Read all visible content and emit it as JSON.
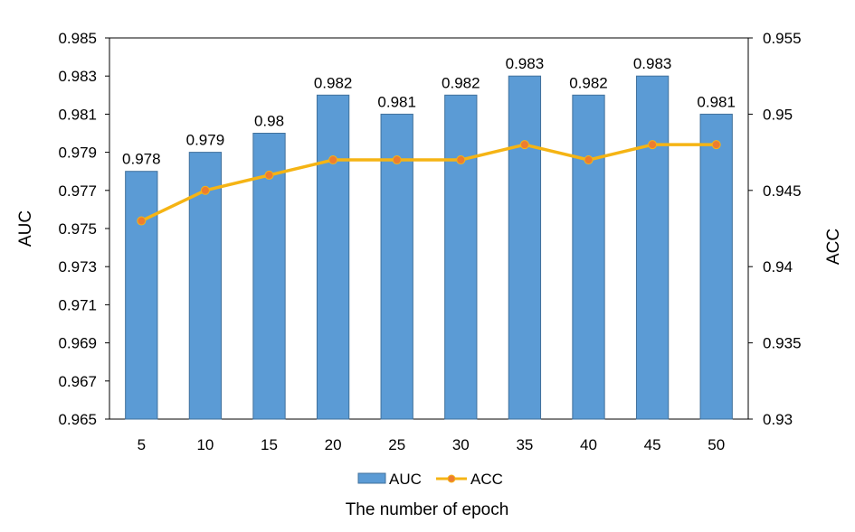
{
  "chart_data": {
    "type": "bar",
    "title": "",
    "xlabel": "The number of epoch",
    "ylabel": "AUC",
    "y2label": "ACC",
    "categories": [
      "5",
      "10",
      "15",
      "20",
      "25",
      "30",
      "35",
      "40",
      "45",
      "50"
    ],
    "ylim": [
      0.965,
      0.985
    ],
    "y_ticks": [
      "0.965",
      "0.967",
      "0.969",
      "0.971",
      "0.973",
      "0.975",
      "0.977",
      "0.979",
      "0.981",
      "0.983",
      "0.985"
    ],
    "y2lim": [
      0.93,
      0.955
    ],
    "y2_ticks": [
      "0.93",
      "0.935",
      "0.94",
      "0.945",
      "0.95",
      "0.955"
    ],
    "grid": false,
    "legend_position": "bottom",
    "series": [
      {
        "name": "AUC",
        "type": "bar",
        "axis": "left",
        "color": "#5B9BD5",
        "values": [
          0.978,
          0.979,
          0.98,
          0.982,
          0.981,
          0.982,
          0.983,
          0.982,
          0.983,
          0.981
        ],
        "labels": [
          "0.978",
          "0.979",
          "0.98",
          "0.982",
          "0.981",
          "0.982",
          "0.983",
          "0.982",
          "0.983",
          "0.981"
        ]
      },
      {
        "name": "ACC",
        "type": "line",
        "axis": "right",
        "color": "#F5B414",
        "marker_color": "#ED7D31",
        "values": [
          0.943,
          0.945,
          0.946,
          0.947,
          0.947,
          0.947,
          0.948,
          0.947,
          0.948,
          0.948
        ]
      }
    ]
  }
}
